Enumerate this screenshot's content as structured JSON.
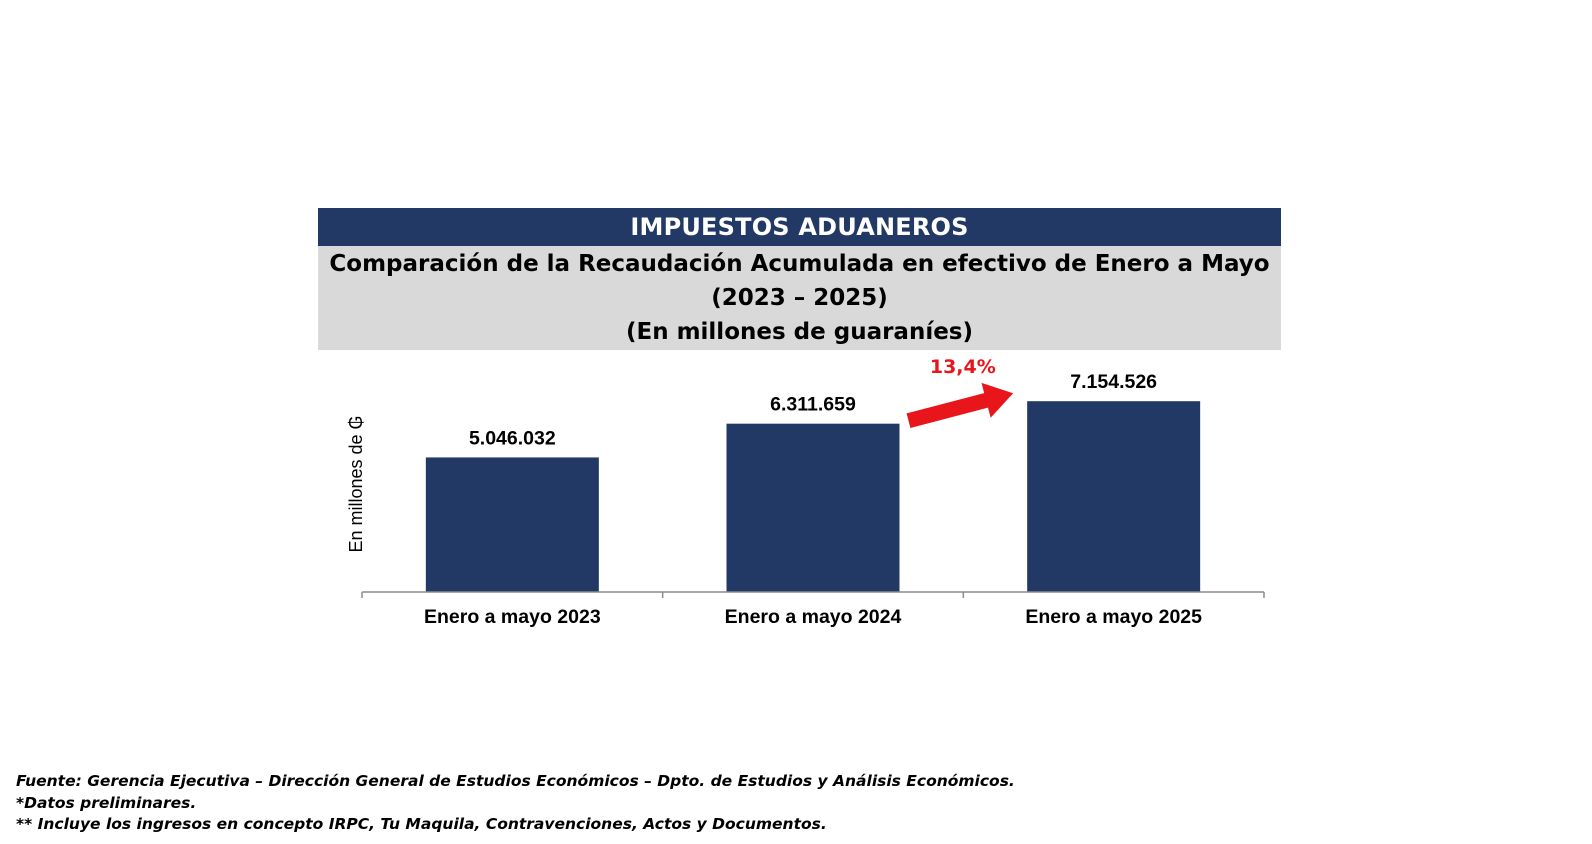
{
  "header": {
    "title": "IMPUESTOS ADUANEROS",
    "subtitle_line1": "Comparación de la Recaudación Acumulada en efectivo de Enero a Mayo",
    "subtitle_line2": "(2023 – 2025)",
    "subtitle_line3": "(En millones de guaraníes)"
  },
  "chart_data": {
    "type": "bar",
    "categories": [
      "Enero a mayo 2023",
      "Enero a mayo 2024",
      "Enero a mayo 2025"
    ],
    "values": [
      5046032,
      6311659,
      7154526
    ],
    "data_labels": [
      "5.046.032",
      "6.311.659",
      "7.154.526"
    ],
    "ylabel": "En millones de ₲",
    "ylim": [
      0,
      7800000
    ],
    "bar_color": "#213964",
    "grid": false,
    "annotation": {
      "text": "13,4%",
      "color": "#e8161b",
      "from_category": "Enero a mayo 2024",
      "to_category": "Enero a mayo 2025"
    }
  },
  "footnotes": {
    "source": "Fuente: Gerencia Ejecutiva – Dirección General de Estudios Económicos – Dpto. de Estudios y Análisis Económicos.",
    "preliminary": "*Datos preliminares.",
    "includes": "** Incluye los ingresos en concepto IRPC, Tu Maquila, Contravenciones, Actos y Documentos."
  }
}
